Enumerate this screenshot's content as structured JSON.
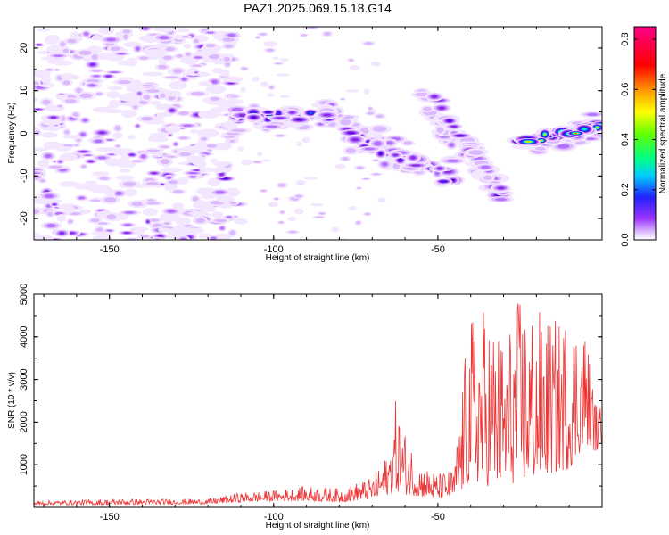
{
  "title": "PAZ1.2025.069.15.18.G14",
  "chart_data": [
    {
      "type": "heatmap",
      "xlabel": "Height of straight line (km)",
      "ylabel": "Frequency (Hz)",
      "xlim": [
        -173,
        0
      ],
      "ylim": [
        -25,
        25
      ],
      "x_ticks": [
        -150,
        -100,
        -50
      ],
      "y_ticks": [
        -20,
        -10,
        0,
        10,
        20
      ],
      "grid": false,
      "colorbar": {
        "label": "Normalized spectral amplitude",
        "range": [
          0,
          0.85
        ],
        "ticks": [
          0.0,
          0.2,
          0.4,
          0.6,
          0.8
        ],
        "colormap": "rainbow (white-violet-blue-cyan-green-yellow-red-magenta)"
      },
      "features": [
        {
          "x": [
            -112,
            -80
          ],
          "freq_hz": 4,
          "peak_amplitude": 0.3
        },
        {
          "x": [
            -78,
            -45
          ],
          "freq_hz": [
            0,
            -11
          ],
          "peak_amplitude": 0.25
        },
        {
          "x": [
            -52,
            -30
          ],
          "freq_hz": [
            9,
            -15
          ],
          "peak_amplitude": 0.2
        },
        {
          "x": [
            -25,
            0
          ],
          "freq_hz": [
            -2,
            2
          ],
          "peak_amplitude": 0.8
        }
      ]
    },
    {
      "type": "line",
      "xlabel": "Height of straight line (km)",
      "ylabel": "SNR (10 * v/v)",
      "xlim": [
        -173,
        0
      ],
      "ylim": [
        0,
        5000
      ],
      "x_ticks": [
        -150,
        -100,
        -50
      ],
      "y_ticks": [
        1000,
        2000,
        3000,
        4000,
        5000
      ],
      "grid": false,
      "color": "#ee3333",
      "envelope": {
        "x": [
          -173,
          -150,
          -120,
          -110,
          -100,
          -90,
          -80,
          -70,
          -65,
          -63,
          -60,
          -55,
          -50,
          -45,
          -42,
          -40,
          -35,
          -30,
          -25,
          -20,
          -15,
          -10,
          -5,
          -2,
          0
        ],
        "y_max": [
          150,
          200,
          200,
          350,
          400,
          500,
          450,
          700,
          1300,
          2550,
          1800,
          1000,
          800,
          900,
          3400,
          4500,
          4800,
          4000,
          5000,
          4700,
          4400,
          4600,
          4300,
          2500,
          2300
        ],
        "y_min": [
          60,
          60,
          80,
          120,
          150,
          150,
          120,
          200,
          300,
          400,
          300,
          250,
          200,
          250,
          400,
          600,
          500,
          500,
          600,
          700,
          800,
          900,
          1500,
          1300,
          1500
        ]
      }
    }
  ]
}
